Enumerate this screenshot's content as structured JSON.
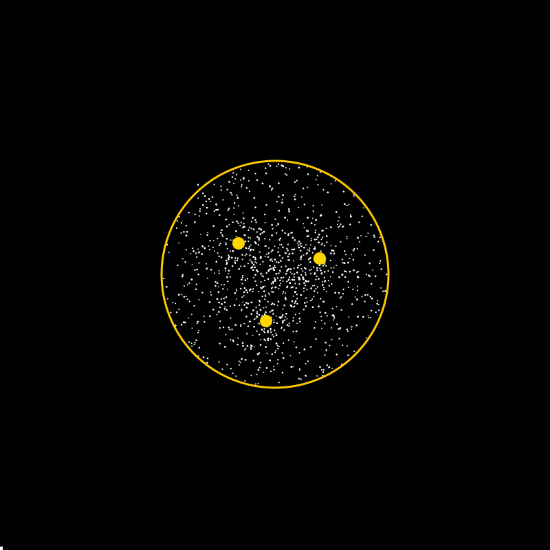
{
  "scene": {
    "background_color": "#000000",
    "boundary_color": "#FFC800",
    "particle_color": "#FFFFFF",
    "attractor_color": "#FFD700",
    "attractor_count": 3,
    "particle_count": 1100
  }
}
